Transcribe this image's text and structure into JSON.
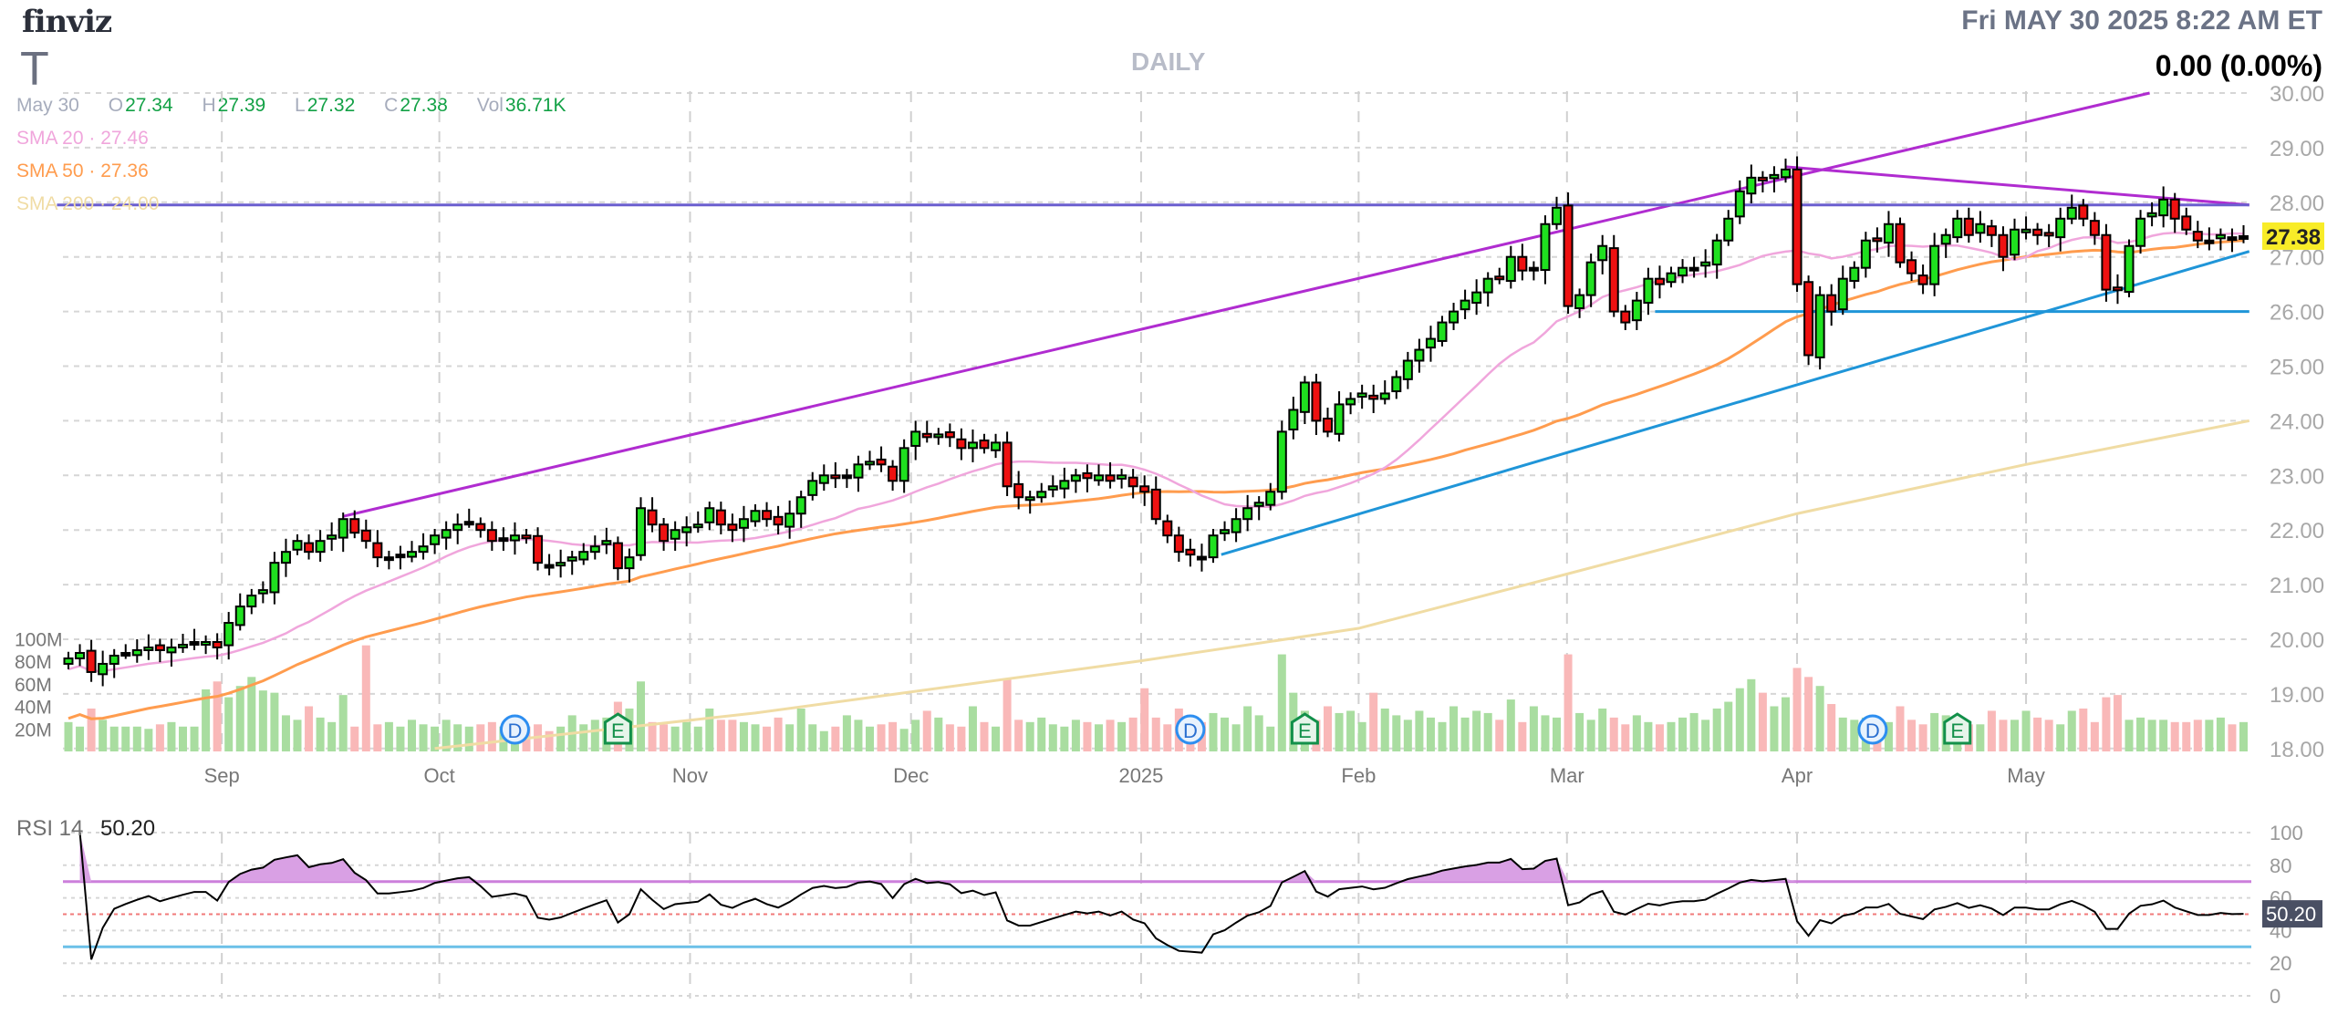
{
  "header": {
    "logo": "finviz",
    "ticker": "T",
    "timeframe": "DAILY",
    "datetime": "Fri MAY 30 2025 8:22 AM ET",
    "change": "0.00 (0.00%)"
  },
  "ohlc": {
    "date": "May 30",
    "o_label": "O",
    "open": "27.34",
    "h_label": "H",
    "high": "27.39",
    "l_label": "L",
    "low": "27.32",
    "c_label": "C",
    "close": "27.38",
    "vol_label": "Vol",
    "volume": "36.71K"
  },
  "indicators": {
    "sma20": {
      "label": "SMA 20",
      "value": "27.46",
      "color": "#f0a6dc"
    },
    "sma50": {
      "label": "SMA 50",
      "value": "27.36",
      "color": "#ff9c4e"
    },
    "sma200": {
      "label": "SMA 200",
      "value": "24.00",
      "color": "#f0dca4"
    },
    "rsi": {
      "label": "RSI 14",
      "value": "50.20"
    }
  },
  "chart_data": {
    "type": "candlestick",
    "title": "T DAILY",
    "ylim": [
      18,
      30
    ],
    "y_ticks": [
      "30.00",
      "29.00",
      "28.00",
      "27.00",
      "26.00",
      "25.00",
      "24.00",
      "23.00",
      "22.00",
      "21.00",
      "20.00",
      "19.00",
      "18.00"
    ],
    "last_price_label": "27.38",
    "x_ticks": [
      {
        "label": "Sep",
        "index": 13.4
      },
      {
        "label": "Oct",
        "index": 32.4
      },
      {
        "label": "Nov",
        "index": 54.3
      },
      {
        "label": "Dec",
        "index": 73.6
      },
      {
        "label": "2025",
        "index": 93.7
      },
      {
        "label": "Feb",
        "index": 112.7
      },
      {
        "label": "Mar",
        "index": 130.9
      },
      {
        "label": "Apr",
        "index": 151
      },
      {
        "label": "May",
        "index": 171
      }
    ],
    "close": [
      19.65,
      19.75,
      19.4,
      19.55,
      19.7,
      19.75,
      19.8,
      19.85,
      19.8,
      19.85,
      19.9,
      19.95,
      19.95,
      19.85,
      20.3,
      20.6,
      20.8,
      20.9,
      21.4,
      21.6,
      21.8,
      21.6,
      21.8,
      21.9,
      22.2,
      21.95,
      21.8,
      21.5,
      21.5,
      21.55,
      21.6,
      21.7,
      21.9,
      22.0,
      22.1,
      22.15,
      22.0,
      21.8,
      21.85,
      21.9,
      21.85,
      21.4,
      21.35,
      21.4,
      21.5,
      21.6,
      21.7,
      21.8,
      21.3,
      21.5,
      22.4,
      22.1,
      21.8,
      22.0,
      22.05,
      22.1,
      22.4,
      22.1,
      22.0,
      22.2,
      22.35,
      22.2,
      22.1,
      22.3,
      22.6,
      22.9,
      23.0,
      22.95,
      23.0,
      23.2,
      23.25,
      23.2,
      22.9,
      23.5,
      23.8,
      23.7,
      23.75,
      23.7,
      23.5,
      23.6,
      23.5,
      23.6,
      22.8,
      22.6,
      22.6,
      22.7,
      22.8,
      22.9,
      23.0,
      22.95,
      23.0,
      22.9,
      23.0,
      22.8,
      22.7,
      22.2,
      21.9,
      21.6,
      21.55,
      21.5,
      21.9,
      22.0,
      22.2,
      22.4,
      22.5,
      22.7,
      23.8,
      24.2,
      24.7,
      24.0,
      23.8,
      24.3,
      24.4,
      24.5,
      24.4,
      24.5,
      24.8,
      25.1,
      25.3,
      25.5,
      25.8,
      26.0,
      26.2,
      26.35,
      26.6,
      26.6,
      27.0,
      26.75,
      26.8,
      27.6,
      27.9,
      26.1,
      26.3,
      26.9,
      27.2,
      26.0,
      25.8,
      26.2,
      26.6,
      26.5,
      26.7,
      26.8,
      26.8,
      26.9,
      27.3,
      27.7,
      28.2,
      28.45,
      28.4,
      28.5,
      28.6,
      26.5,
      25.2,
      26.3,
      26.0,
      26.6,
      26.8,
      27.3,
      27.3,
      27.6,
      26.9,
      26.7,
      26.5,
      27.2,
      27.4,
      27.7,
      27.4,
      27.6,
      27.4,
      27.0,
      27.5,
      27.5,
      27.4,
      27.4,
      27.7,
      27.9,
      27.7,
      27.4,
      26.4,
      26.4,
      27.2,
      27.7,
      27.8,
      28.05,
      27.7,
      27.5,
      27.3,
      27.3,
      27.4,
      27.35,
      27.38
    ],
    "volume_M": [
      26,
      22,
      38,
      28,
      22,
      22,
      22,
      20,
      24,
      26,
      22,
      22,
      55,
      62,
      48,
      58,
      66,
      54,
      52,
      32,
      28,
      40,
      30,
      26,
      50,
      22,
      94,
      24,
      26,
      22,
      28,
      24,
      22,
      28,
      24,
      22,
      24,
      26,
      22,
      20,
      22,
      24,
      18,
      22,
      32,
      24,
      28,
      30,
      44,
      38,
      62,
      26,
      24,
      22,
      26,
      22,
      38,
      28,
      28,
      26,
      24,
      22,
      30,
      24,
      38,
      24,
      18,
      22,
      32,
      28,
      22,
      24,
      26,
      20,
      28,
      36,
      30,
      24,
      22,
      40,
      26,
      22,
      64,
      28,
      26,
      30,
      24,
      22,
      28,
      26,
      24,
      28,
      26,
      30,
      56,
      30,
      24,
      38,
      26,
      26,
      34,
      30,
      24,
      40,
      32,
      22,
      86,
      52,
      36,
      28,
      40,
      34,
      36,
      26,
      52,
      38,
      32,
      28,
      36,
      30,
      26,
      40,
      30,
      36,
      34,
      28,
      46,
      26,
      40,
      32,
      30,
      86,
      34,
      28,
      38,
      30,
      24,
      32,
      26,
      24,
      26,
      30,
      34,
      28,
      38,
      44,
      56,
      64,
      52,
      40,
      48,
      74,
      66,
      58,
      42,
      30,
      28,
      30,
      26,
      26,
      40,
      28,
      24,
      34,
      32,
      28,
      24,
      24,
      36,
      28,
      28,
      36,
      30,
      28,
      24,
      36,
      38,
      26,
      48,
      50,
      28,
      30,
      28,
      28,
      26,
      26,
      28,
      28,
      30,
      24,
      26
    ],
    "sma200_points": [
      [
        32,
        18.0
      ],
      [
        60,
        18.65
      ],
      [
        93.5,
        19.6
      ],
      [
        112.7,
        20.2
      ],
      [
        131,
        21.2
      ],
      [
        151,
        22.3
      ],
      [
        171,
        23.2
      ],
      [
        190.5,
        24.0
      ]
    ],
    "trendlines": [
      {
        "name": "upper-channel-line",
        "color": "#b02cd0",
        "from": [
          24,
          22.25
        ],
        "to": [
          181.8,
          30.0
        ]
      },
      {
        "name": "descending-resistance-line",
        "color": "#b02cd0",
        "from": [
          150,
          28.65
        ],
        "to": [
          190.5,
          27.95
        ]
      },
      {
        "name": "horizontal-resistance-line",
        "color": "#6b5fcf",
        "from": [
          -1,
          27.95
        ],
        "to": [
          190.5,
          27.95
        ]
      },
      {
        "name": "rising-support-line",
        "color": "#1f95d8",
        "from": [
          100.7,
          21.55
        ],
        "to": [
          190.5,
          27.1
        ]
      },
      {
        "name": "horizontal-support-line",
        "color": "#1f95d8",
        "from": [
          138.6,
          26.0
        ],
        "to": [
          190.5,
          26.0
        ]
      }
    ],
    "events": [
      {
        "type": "D",
        "index": 39
      },
      {
        "type": "E",
        "index": 48
      },
      {
        "type": "D",
        "index": 98
      },
      {
        "type": "E",
        "index": 108
      },
      {
        "type": "D",
        "index": 157.6
      },
      {
        "type": "E",
        "index": 165
      }
    ],
    "volume_ticks": [
      "100M",
      "80M",
      "60M",
      "40M",
      "20M"
    ],
    "rsi": {
      "period": 14,
      "ylim": [
        0,
        100
      ],
      "y_ticks": [
        "100",
        "80",
        "60",
        "40",
        "20",
        "0"
      ],
      "overbought": 70,
      "oversold": 30,
      "mid": 50
    },
    "colors": {
      "up": "#1fe01f",
      "down": "#ee1111",
      "vol_up": "#a9dda0",
      "vol_down": "#f9b8b8",
      "rsi_fill": "#d9a0e4",
      "last_price_bg": "#f8ec28",
      "rsi_value_bg": "#4a5064"
    }
  }
}
